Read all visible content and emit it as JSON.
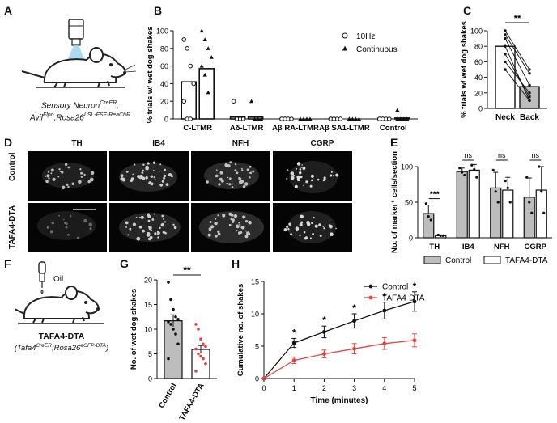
{
  "panels": {
    "A": "A",
    "B": "B",
    "C": "C",
    "D": "D",
    "E": "E",
    "F": "F",
    "G": "G",
    "H": "H"
  },
  "panelA": {
    "line1": "Sensory Neuron",
    "line1_sup": "CreER",
    "line1_tail": ";",
    "line2_a": "Avil",
    "line2_a_sup": "Flpo",
    "line2_b": ";Rosa26",
    "line2_b_sup": "LSL-FSF-ReaChR"
  },
  "panelF": {
    "oil_label": "Oil",
    "line1": "TAFA4-DTA",
    "line2_open": "(",
    "line2_a": "Tafa4",
    "line2_a_sup": "CreER",
    "line2_b": ";Rosa26",
    "line2_b_sup": "eGFP-DTA",
    "line2_close": ")"
  },
  "panelD": {
    "columns": [
      "TH",
      "IB4",
      "NFH",
      "CGRP"
    ],
    "rows": [
      "Control",
      "TAFA4-DTA"
    ]
  },
  "chart_data": [
    {
      "id": "B",
      "type": "bar",
      "ylabel": "% trials w/ wet dog shakes",
      "ylim": [
        0,
        100
      ],
      "yticks": [
        0,
        20,
        40,
        60,
        80,
        100
      ],
      "categories": [
        "C-LTMR",
        "Aδ-LTMR",
        "Aβ RA-LTMR",
        "Aβ SA1-LTMR",
        "Control"
      ],
      "legend": [
        "10Hz",
        "Continuous"
      ],
      "legend_position": "top-right",
      "series": [
        {
          "name": "10Hz",
          "marker": "open-circle",
          "values": [
            42,
            2,
            0,
            0,
            0
          ],
          "points": [
            [
              90,
              80,
              60,
              40,
              20,
              0,
              0
            ],
            [
              20,
              0,
              0,
              0
            ],
            [
              0,
              0,
              0,
              0,
              0,
              0
            ],
            [
              0,
              0,
              0,
              0,
              0,
              0
            ],
            [
              0,
              0,
              0,
              0,
              0,
              0
            ]
          ]
        },
        {
          "name": "Continuous",
          "marker": "filled-triangle",
          "values": [
            57,
            2,
            0,
            0,
            1
          ],
          "points": [
            [
              100,
              90,
              80,
              70,
              60,
              50,
              30
            ],
            [
              20,
              0,
              0,
              0
            ],
            [
              0,
              0,
              0,
              0,
              0
            ],
            [
              0,
              0,
              0,
              0,
              0
            ],
            [
              10,
              0,
              0,
              0,
              0,
              0
            ]
          ]
        }
      ]
    },
    {
      "id": "C",
      "type": "bar",
      "ylabel": "% trials w/ wet dog shakes",
      "ylim": [
        0,
        100
      ],
      "yticks": [
        0,
        20,
        40,
        60,
        80,
        100
      ],
      "categories": [
        "Neck",
        "Back"
      ],
      "values": [
        80,
        28
      ],
      "pairs": [
        [
          100,
          50
        ],
        [
          95,
          45
        ],
        [
          90,
          30
        ],
        [
          80,
          10
        ],
        [
          70,
          15
        ],
        [
          60,
          20
        ],
        [
          50,
          10
        ]
      ],
      "significance": "**"
    },
    {
      "id": "E",
      "type": "bar",
      "ylabel": "No. of marker⁺ cells/section",
      "ylim": [
        0,
        100
      ],
      "yticks": [
        0,
        50,
        100
      ],
      "categories": [
        "TH",
        "IB4",
        "NFH",
        "CGRP"
      ],
      "series": [
        {
          "name": "Control",
          "color": "#bdbdbd",
          "values": [
            34,
            93,
            70,
            57
          ],
          "errors": [
            12,
            5,
            22,
            27
          ],
          "points": [
            [
              48,
              30,
              25
            ],
            [
              98,
              92,
              88
            ],
            [
              95,
              65,
              50
            ],
            [
              85,
              50,
              35
            ]
          ]
        },
        {
          "name": "TAFA4-DTA",
          "color": "#ffffff",
          "values": [
            3,
            95,
            67,
            67
          ],
          "errors": [
            1,
            8,
            18,
            33
          ],
          "points": [
            [
              4,
              3,
              3
            ],
            [
              102,
              96,
              85
            ],
            [
              80,
              70,
              50
            ],
            [
              100,
              65,
              35
            ]
          ]
        }
      ],
      "significance": [
        "***",
        "ns",
        "ns",
        "ns"
      ],
      "legend_position": "bottom"
    },
    {
      "id": "G",
      "type": "bar",
      "ylabel": "No. of wet dog shakes",
      "ylim": [
        0,
        20
      ],
      "yticks": [
        0,
        5,
        10,
        15,
        20
      ],
      "categories": [
        "Control",
        "TAFA4-DTA"
      ],
      "values": [
        11.7,
        5.9
      ],
      "errors": [
        1.2,
        0.8
      ],
      "points": [
        [
          19.5,
          16,
          14,
          12.5,
          12,
          11.5,
          11,
          10,
          9,
          7,
          4
        ],
        [
          11,
          10,
          8,
          7,
          6.5,
          6,
          5,
          4.5,
          4,
          3,
          1.5
        ]
      ],
      "significance": "**"
    },
    {
      "id": "H",
      "type": "line",
      "xlabel": "Time (minutes)",
      "ylabel": "Cumulative no. of shakes",
      "xlim": [
        0,
        5
      ],
      "ylim": [
        0,
        15
      ],
      "xticks": [
        0,
        1,
        2,
        3,
        4,
        5
      ],
      "yticks": [
        0,
        5,
        10,
        15
      ],
      "x": [
        0,
        1,
        2,
        3,
        4,
        5
      ],
      "series": [
        {
          "name": "Control",
          "color": "#111111",
          "values": [
            0,
            5.5,
            7.2,
            8.9,
            10.5,
            11.9
          ],
          "errors": [
            0,
            0.7,
            0.9,
            1.1,
            1.3,
            1.5
          ]
        },
        {
          "name": "TAFA4-DTA",
          "color": "#e8423f",
          "values": [
            0,
            2.8,
            3.8,
            4.6,
            5.4,
            5.9
          ],
          "errors": [
            0,
            0.5,
            0.6,
            0.8,
            0.9,
            1.0
          ]
        }
      ],
      "significance": [
        "",
        "*",
        "*",
        "*",
        "*",
        "*"
      ],
      "legend_position": "top-right"
    }
  ]
}
